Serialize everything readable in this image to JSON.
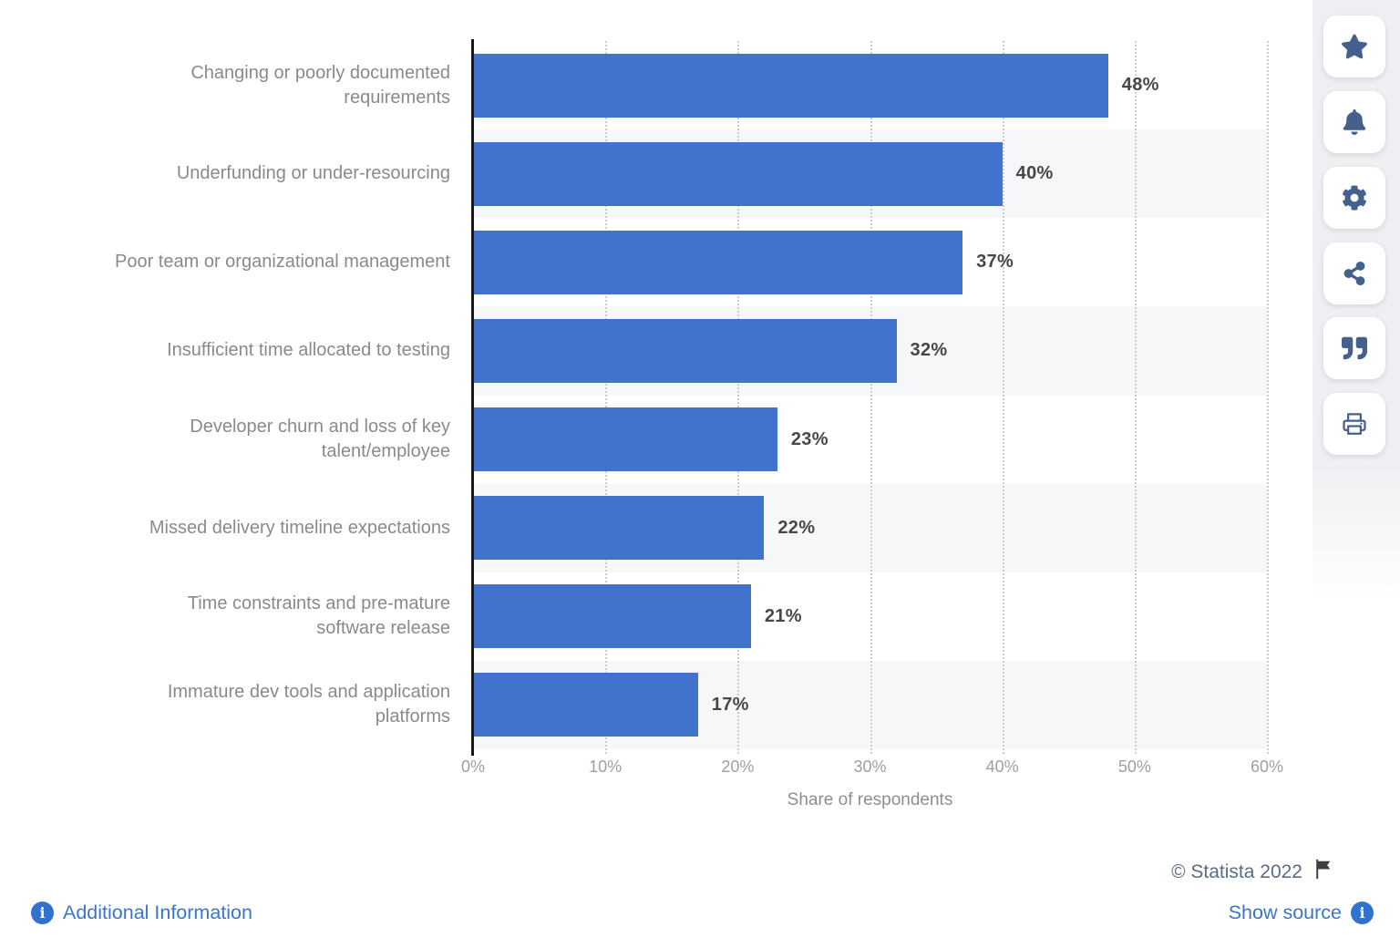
{
  "chart_data": {
    "type": "bar",
    "orientation": "horizontal",
    "categories": [
      "Changing or poorly documented\nrequirements",
      "Underfunding or under-resourcing",
      "Poor team or organizational management",
      "Insufficient time allocated to testing",
      "Developer churn and loss of key\ntalent/employee",
      "Missed delivery timeline expectations",
      "Time constraints and pre-mature\nsoftware release",
      "Immature dev tools and application\nplatforms"
    ],
    "values": [
      48,
      40,
      37,
      32,
      23,
      22,
      21,
      17
    ],
    "value_labels": [
      "48%",
      "40%",
      "37%",
      "32%",
      "23%",
      "22%",
      "21%",
      "17%"
    ],
    "xlabel": "Share of respondents",
    "x_ticks": [
      "0%",
      "10%",
      "20%",
      "30%",
      "40%",
      "50%",
      "60%"
    ],
    "xlim": [
      0,
      60
    ],
    "grid": "vertical-dotted",
    "legend": "none",
    "bar_color": "#4273cc",
    "band_color": "#f6f7f8"
  },
  "toolbar": {
    "buttons": [
      {
        "name": "favorite",
        "icon": "star-icon"
      },
      {
        "name": "alerts",
        "icon": "bell-icon"
      },
      {
        "name": "settings",
        "icon": "gear-icon"
      },
      {
        "name": "share",
        "icon": "share-icon"
      },
      {
        "name": "cite",
        "icon": "quote-icon"
      },
      {
        "name": "print",
        "icon": "print-icon"
      }
    ]
  },
  "footer": {
    "copyright": "© Statista 2022",
    "additional_info": "Additional Information",
    "show_source": "Show source"
  },
  "colors": {
    "bar": "#4273cc",
    "link_blue": "#3a76cb",
    "icon_slate": "#44608c",
    "copyright_text": "#5b6c84",
    "value_label": "#474747",
    "category_label": "#8a8a8a"
  }
}
